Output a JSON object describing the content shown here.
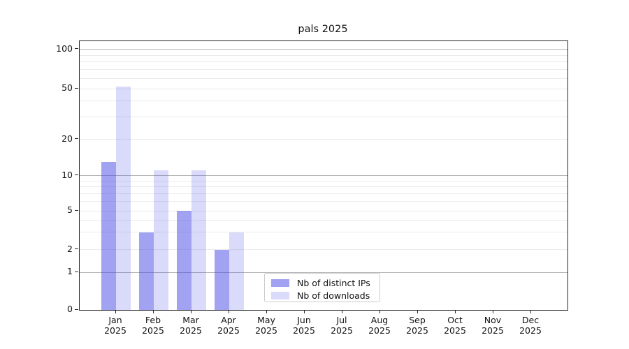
{
  "chart_data": {
    "type": "bar",
    "title": "pals 2025",
    "categories": [
      "Jan",
      "Feb",
      "Mar",
      "Apr",
      "May",
      "Jun",
      "Jul",
      "Aug",
      "Sep",
      "Oct",
      "Nov",
      "Dec"
    ],
    "year": "2025",
    "series": [
      {
        "name": "Nb of distinct IPs",
        "slug": "distinct-ips",
        "color": "rgba(70,70,230,0.5)",
        "values": [
          13,
          3,
          5,
          2,
          0,
          0,
          0,
          0,
          0,
          0,
          0,
          0
        ]
      },
      {
        "name": "Nb of downloads",
        "slug": "downloads",
        "color": "rgba(70,70,230,0.2)",
        "values": [
          52,
          11,
          11,
          3,
          0,
          0,
          0,
          0,
          0,
          0,
          0,
          0
        ]
      }
    ],
    "y_ticks": [
      0,
      1,
      2,
      5,
      10,
      20,
      50,
      100
    ],
    "ylim": [
      0,
      100
    ],
    "yscale": "log-like (linear 0-1, log above)",
    "grid": "on",
    "legend_position": "lower center inside plot",
    "colors": {
      "grid_major": "#b3b3b3",
      "grid_minor": "#ebebeb",
      "axis": "#262626",
      "text": "#111111",
      "background": "#ffffff"
    }
  }
}
